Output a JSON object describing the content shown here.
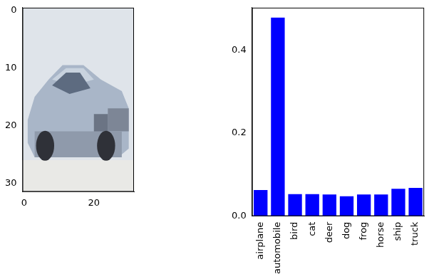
{
  "chart_data": [
    {
      "type": "image",
      "xlim": [
        -0.5,
        31.5
      ],
      "ylim": [
        31.5,
        -0.5
      ],
      "xticks": [
        0,
        20
      ],
      "yticks": [
        0,
        10,
        20,
        30
      ],
      "grid": false
    },
    {
      "type": "bar",
      "categories": [
        "airplane",
        "automobile",
        "bird",
        "cat",
        "deer",
        "dog",
        "frog",
        "horse",
        "ship",
        "truck"
      ],
      "values": [
        0.063,
        0.478,
        0.053,
        0.053,
        0.052,
        0.048,
        0.052,
        0.052,
        0.066,
        0.068
      ],
      "color": "#0000ff",
      "ylim": [
        0,
        0.502
      ],
      "yticks": [
        {
          "value": 0,
          "label": "0.0"
        },
        0.2,
        0.4
      ],
      "grid": false
    }
  ]
}
